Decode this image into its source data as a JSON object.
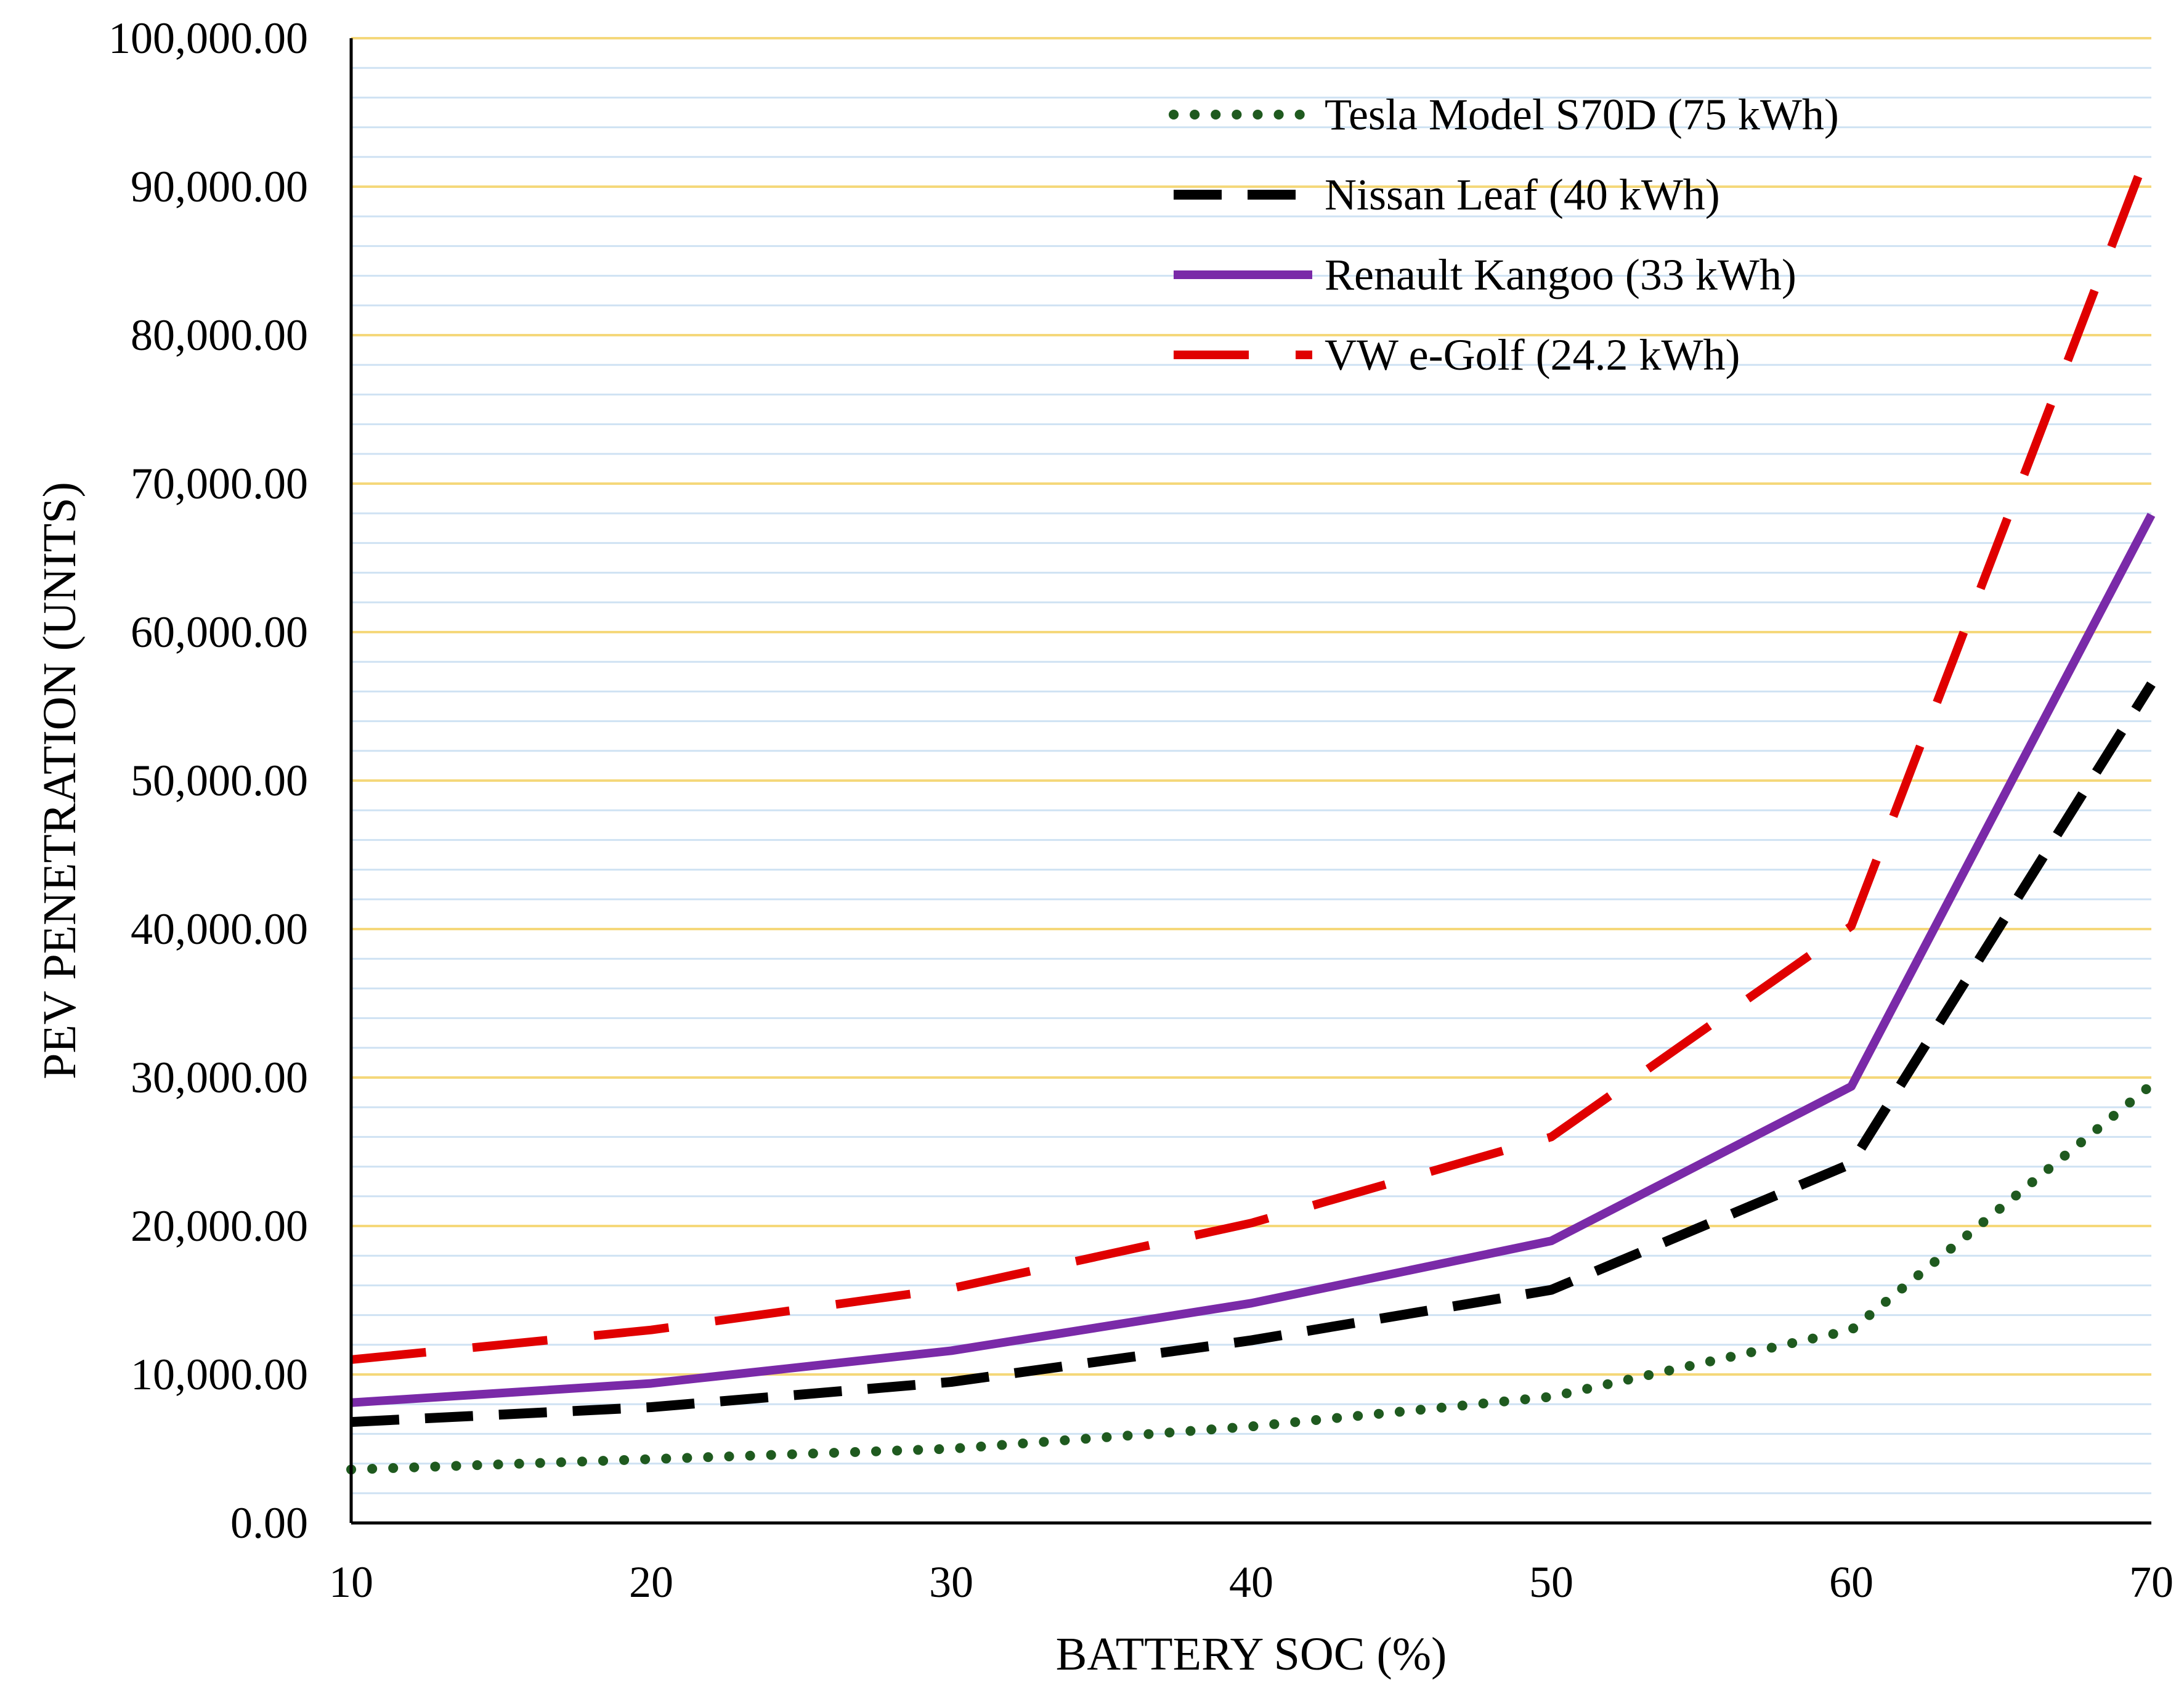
{
  "chart_data": {
    "type": "line",
    "title": "",
    "xlabel": "BATTERY SOC (%)",
    "ylabel": "PEV PENETRATION (UNITS)",
    "x": [
      10,
      20,
      30,
      40,
      50,
      60,
      70
    ],
    "xlim": [
      10,
      70
    ],
    "ylim": [
      0,
      100000
    ],
    "x_tick_labels": [
      "10",
      "20",
      "30",
      "40",
      "50",
      "60",
      "70"
    ],
    "y_tick_labels": [
      "0.00",
      "10,000.00",
      "20,000.00",
      "30,000.00",
      "40,000.00",
      "50,000.00",
      "60,000.00",
      "70,000.00",
      "80,000.00",
      "90,000.00",
      "100,000.00"
    ],
    "major_gridline_color": "#f5d87a",
    "minor_gridline_color": "#cfe2f3",
    "legend_position": "top-right",
    "series": [
      {
        "name": "Tesla Model S70D (75 kWh)",
        "values": [
          3600,
          4300,
          5000,
          6500,
          8500,
          13000,
          29500
        ],
        "color": "#1f5a1f",
        "style": "dotted"
      },
      {
        "name": "Nissan Leaf (40 kWh)",
        "values": [
          6800,
          7800,
          9500,
          12300,
          15700,
          24200,
          56500
        ],
        "color": "#000000",
        "style": "dashed"
      },
      {
        "name": "Renault Kangoo (33 kWh)",
        "values": [
          8100,
          9400,
          11600,
          14800,
          19000,
          29400,
          67900
        ],
        "color": "#7a2aa8",
        "style": "solid"
      },
      {
        "name": "VW e-Golf (24.2 kWh)",
        "values": [
          11000,
          13000,
          15800,
          20200,
          26000,
          40200,
          93000
        ],
        "color": "#e00000",
        "style": "long-dash"
      }
    ]
  }
}
